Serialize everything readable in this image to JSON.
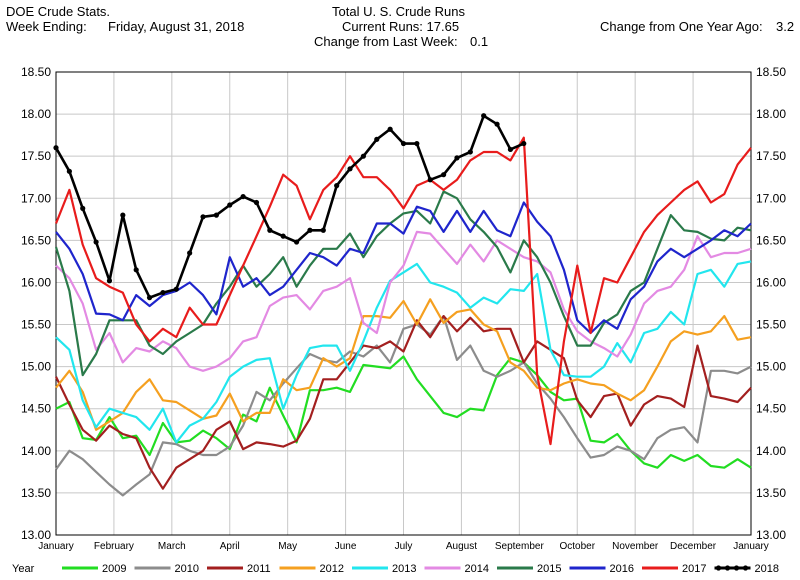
{
  "header": {
    "left_line1": "DOE Crude Stats.",
    "left_line2_label": "Week Ending:",
    "left_line2_value": "Friday, August 31, 2018",
    "title": "Total U. S. Crude Runs",
    "current_runs": "Current Runs: 17.65",
    "change_week_label": "Change from Last Week:",
    "change_week_value": "0.1",
    "change_year_label": "Change from One Year Ago:",
    "change_year_value": "3.2"
  },
  "chart_data": {
    "type": "line",
    "title": "Total U. S. Crude Runs",
    "ylim": [
      13.0,
      18.5
    ],
    "yticks": [
      "13.00",
      "13.50",
      "14.00",
      "14.50",
      "15.00",
      "15.50",
      "16.00",
      "16.50",
      "17.00",
      "17.50",
      "18.00",
      "18.50"
    ],
    "xlim": [
      0,
      52
    ],
    "months": [
      "January",
      "February",
      "March",
      "April",
      "May",
      "June",
      "July",
      "August",
      "September",
      "October",
      "November",
      "December",
      "January"
    ],
    "legend_title": "Year",
    "grid": true,
    "series": [
      {
        "name": "2009",
        "color": "#22dd22",
        "values": [
          14.5,
          14.58,
          14.15,
          14.13,
          14.4,
          14.15,
          14.18,
          13.95,
          14.33,
          14.1,
          14.12,
          14.24,
          14.15,
          14.02,
          14.43,
          14.35,
          14.75,
          14.42,
          14.1,
          14.72,
          14.72,
          14.75,
          14.7,
          15.02,
          15.0,
          14.98,
          15.12,
          14.85,
          14.65,
          14.45,
          14.4,
          14.5,
          14.48,
          14.9,
          15.1,
          15.05,
          14.9,
          14.7,
          14.6,
          14.62,
          14.12,
          14.1,
          14.2,
          14.0,
          13.85,
          13.8,
          13.95,
          13.88,
          13.95,
          13.82,
          13.8,
          13.9,
          13.8
        ]
      },
      {
        "name": "2010",
        "color": "#8c8c8c",
        "values": [
          13.78,
          14.0,
          13.9,
          13.75,
          13.6,
          13.47,
          13.6,
          13.72,
          14.1,
          14.08,
          14.0,
          13.95,
          13.95,
          14.05,
          14.3,
          14.7,
          14.6,
          14.8,
          14.98,
          15.15,
          15.08,
          15.05,
          15.18,
          15.12,
          15.25,
          15.05,
          15.45,
          15.5,
          15.38,
          15.6,
          15.08,
          15.25,
          14.95,
          14.88,
          14.95,
          15.05,
          14.8,
          14.62,
          14.4,
          14.15,
          13.92,
          13.95,
          14.05,
          14.0,
          13.9,
          14.15,
          14.25,
          14.28,
          14.1,
          14.95,
          14.95,
          14.92,
          15.0
        ]
      },
      {
        "name": "2011",
        "color": "#a31f1f",
        "values": [
          14.88,
          14.55,
          14.25,
          14.12,
          14.3,
          14.2,
          14.15,
          13.8,
          13.55,
          13.8,
          13.9,
          14.0,
          14.25,
          14.35,
          14.02,
          14.1,
          14.08,
          14.05,
          14.12,
          14.38,
          14.85,
          14.85,
          15.05,
          15.25,
          15.22,
          15.3,
          15.18,
          15.55,
          15.35,
          15.6,
          15.42,
          15.58,
          15.42,
          15.45,
          15.45,
          15.05,
          15.3,
          15.2,
          15.1,
          14.6,
          14.4,
          14.65,
          14.68,
          14.3,
          14.55,
          14.65,
          14.62,
          14.52,
          15.25,
          14.65,
          14.62,
          14.58,
          14.75
        ]
      },
      {
        "name": "2012",
        "color": "#f5a020",
        "values": [
          14.75,
          14.95,
          14.7,
          14.25,
          14.35,
          14.45,
          14.7,
          14.85,
          14.6,
          14.58,
          14.48,
          14.38,
          14.42,
          14.68,
          14.35,
          14.45,
          14.45,
          14.85,
          14.72,
          14.75,
          15.1,
          15.0,
          15.1,
          15.6,
          15.6,
          15.58,
          15.78,
          15.5,
          15.8,
          15.52,
          15.65,
          15.68,
          15.5,
          15.42,
          15.05,
          14.95,
          14.75,
          14.72,
          14.8,
          14.85,
          14.8,
          14.78,
          14.68,
          14.6,
          14.72,
          15.0,
          15.3,
          15.42,
          15.38,
          15.42,
          15.6,
          15.32,
          15.35
        ]
      },
      {
        "name": "2013",
        "color": "#22e6ee",
        "values": [
          15.35,
          15.2,
          14.6,
          14.28,
          14.5,
          14.45,
          14.4,
          14.25,
          14.5,
          14.1,
          14.3,
          14.38,
          14.58,
          14.88,
          15.0,
          15.08,
          15.1,
          14.5,
          14.9,
          15.22,
          15.25,
          15.25,
          14.95,
          15.3,
          15.7,
          16.02,
          16.12,
          16.22,
          16.0,
          15.95,
          15.88,
          15.7,
          15.82,
          15.75,
          15.92,
          15.9,
          16.1,
          15.2,
          14.9,
          14.88,
          14.88,
          15.0,
          15.28,
          15.05,
          15.4,
          15.45,
          15.65,
          15.5,
          16.1,
          16.15,
          15.95,
          16.22,
          16.25
        ]
      },
      {
        "name": "2014",
        "color": "#e38ae3",
        "values": [
          16.2,
          16.05,
          15.75,
          15.2,
          15.4,
          15.05,
          15.22,
          15.18,
          15.3,
          15.22,
          15.0,
          14.95,
          15.0,
          15.1,
          15.3,
          15.35,
          15.72,
          15.82,
          15.85,
          15.68,
          15.9,
          15.95,
          16.05,
          15.52,
          15.4,
          16.0,
          16.2,
          16.6,
          16.58,
          16.4,
          16.22,
          16.45,
          16.25,
          16.5,
          16.4,
          16.3,
          16.25,
          16.12,
          15.68,
          15.42,
          15.3,
          15.22,
          15.12,
          15.38,
          15.75,
          15.9,
          15.95,
          16.15,
          16.55,
          16.3,
          16.35,
          16.35,
          16.4
        ]
      },
      {
        "name": "2015",
        "color": "#2a7a4a",
        "values": [
          16.42,
          15.9,
          14.9,
          15.15,
          15.55,
          15.55,
          15.55,
          15.25,
          15.15,
          15.3,
          15.4,
          15.5,
          15.75,
          15.95,
          16.2,
          15.95,
          16.1,
          16.3,
          15.95,
          16.2,
          16.4,
          16.4,
          16.58,
          16.3,
          16.55,
          16.7,
          16.82,
          16.85,
          16.7,
          17.08,
          17.0,
          16.75,
          16.6,
          16.42,
          16.12,
          16.5,
          16.3,
          16.0,
          15.6,
          15.25,
          15.25,
          15.52,
          15.62,
          15.9,
          16.0,
          16.4,
          16.8,
          16.62,
          16.6,
          16.52,
          16.5,
          16.65,
          16.62
        ]
      },
      {
        "name": "2016",
        "color": "#1f25cc",
        "values": [
          16.6,
          16.4,
          16.1,
          15.63,
          15.62,
          15.55,
          15.85,
          15.72,
          15.85,
          15.9,
          16.0,
          15.85,
          15.62,
          16.3,
          15.95,
          16.05,
          15.85,
          15.95,
          16.15,
          16.35,
          16.3,
          16.2,
          16.4,
          16.35,
          16.7,
          16.7,
          16.58,
          16.9,
          16.85,
          16.6,
          16.85,
          16.6,
          16.85,
          16.62,
          16.55,
          16.95,
          16.72,
          16.55,
          16.15,
          15.55,
          15.4,
          15.55,
          15.45,
          15.8,
          15.95,
          16.25,
          16.4,
          16.3,
          16.4,
          16.5,
          16.62,
          16.55,
          16.7
        ]
      },
      {
        "name": "2017",
        "color": "#e81c1c",
        "values": [
          16.7,
          17.1,
          16.45,
          16.05,
          15.95,
          15.88,
          15.5,
          15.3,
          15.45,
          15.35,
          15.7,
          15.5,
          15.5,
          15.85,
          16.2,
          16.55,
          16.9,
          17.28,
          17.15,
          16.75,
          17.1,
          17.25,
          17.5,
          17.25,
          17.25,
          17.1,
          16.88,
          17.15,
          17.22,
          17.1,
          17.22,
          17.45,
          17.55,
          17.55,
          17.45,
          17.72,
          14.9,
          14.08,
          15.3,
          16.2,
          15.4,
          16.05,
          16.0,
          16.3,
          16.6,
          16.8,
          16.95,
          17.1,
          17.2,
          16.95,
          17.05,
          17.4,
          17.6
        ]
      },
      {
        "name": "2018",
        "color": "#000000",
        "marker": true,
        "values": [
          17.6,
          17.32,
          16.88,
          16.48,
          16.02,
          16.8,
          16.15,
          15.82,
          15.88,
          15.92,
          16.35,
          16.78,
          16.8,
          16.92,
          17.02,
          16.95,
          16.62,
          16.55,
          16.48,
          16.62,
          16.62,
          17.15,
          17.35,
          17.5,
          17.7,
          17.82,
          17.65,
          17.65,
          17.22,
          17.28,
          17.48,
          17.55,
          17.98,
          17.88,
          17.58,
          17.65
        ]
      }
    ]
  }
}
